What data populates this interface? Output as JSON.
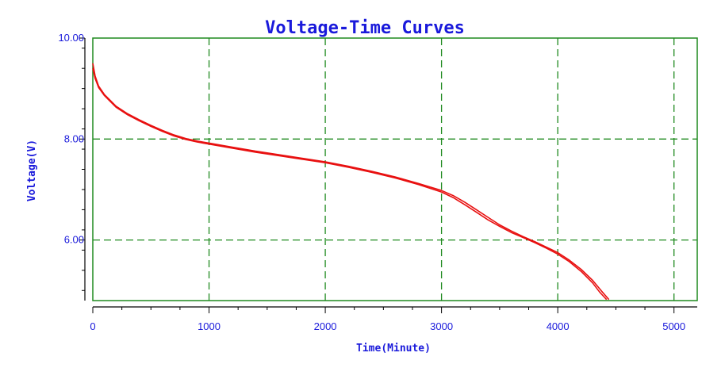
{
  "chart_data": {
    "type": "line",
    "title": "Voltage-Time Curves",
    "xlabel": "Time(Minute)",
    "ylabel": "Voltage(V)",
    "xlim": [
      0,
      5200
    ],
    "ylim": [
      4.8,
      10.0
    ],
    "x_ticks": [
      0,
      1000,
      2000,
      3000,
      4000,
      5000
    ],
    "x_tick_labels": [
      "0",
      "1000",
      "2000",
      "3000",
      "4000",
      "5000"
    ],
    "y_ticks": [
      6.0,
      8.0,
      10.0
    ],
    "y_tick_labels": [
      "6.00",
      "8.00",
      "10.00"
    ],
    "grid": true,
    "colors": {
      "series": "#e81010",
      "grid": "#1f8a1f",
      "text": "#1a1adb",
      "axis": "#000000"
    },
    "series": [
      {
        "x": [
          0,
          20,
          50,
          100,
          200,
          300,
          400,
          500,
          600,
          700,
          800,
          900,
          1000,
          1200,
          1400,
          1600,
          1800,
          2000,
          2200,
          2400,
          2600,
          2800,
          3000,
          3100,
          3200,
          3300,
          3400,
          3500,
          3600,
          3700,
          3800,
          3900,
          4000,
          4100,
          4200,
          4300,
          4380,
          4440
        ],
        "y": [
          9.5,
          9.25,
          9.05,
          8.88,
          8.65,
          8.5,
          8.38,
          8.27,
          8.17,
          8.08,
          8.01,
          7.96,
          7.92,
          7.84,
          7.76,
          7.69,
          7.62,
          7.55,
          7.46,
          7.36,
          7.25,
          7.12,
          6.98,
          6.88,
          6.75,
          6.6,
          6.45,
          6.3,
          6.18,
          6.07,
          5.97,
          5.86,
          5.75,
          5.6,
          5.42,
          5.2,
          4.98,
          4.82
        ]
      },
      {
        "x": [
          0,
          20,
          50,
          100,
          200,
          300,
          400,
          500,
          600,
          700,
          800,
          900,
          1000,
          1200,
          1400,
          1600,
          1800,
          2000,
          2200,
          2400,
          2600,
          2800,
          3000,
          3100,
          3200,
          3300,
          3400,
          3500,
          3600,
          3700,
          3800,
          3900,
          4000,
          4100,
          4200,
          4300,
          4360,
          4420
        ],
        "y": [
          9.4,
          9.2,
          9.02,
          8.86,
          8.63,
          8.48,
          8.36,
          8.25,
          8.15,
          8.06,
          7.99,
          7.94,
          7.9,
          7.82,
          7.74,
          7.67,
          7.6,
          7.53,
          7.44,
          7.34,
          7.23,
          7.1,
          6.95,
          6.84,
          6.7,
          6.55,
          6.4,
          6.27,
          6.15,
          6.05,
          5.95,
          5.84,
          5.72,
          5.57,
          5.38,
          5.15,
          4.97,
          4.82
        ]
      }
    ]
  }
}
